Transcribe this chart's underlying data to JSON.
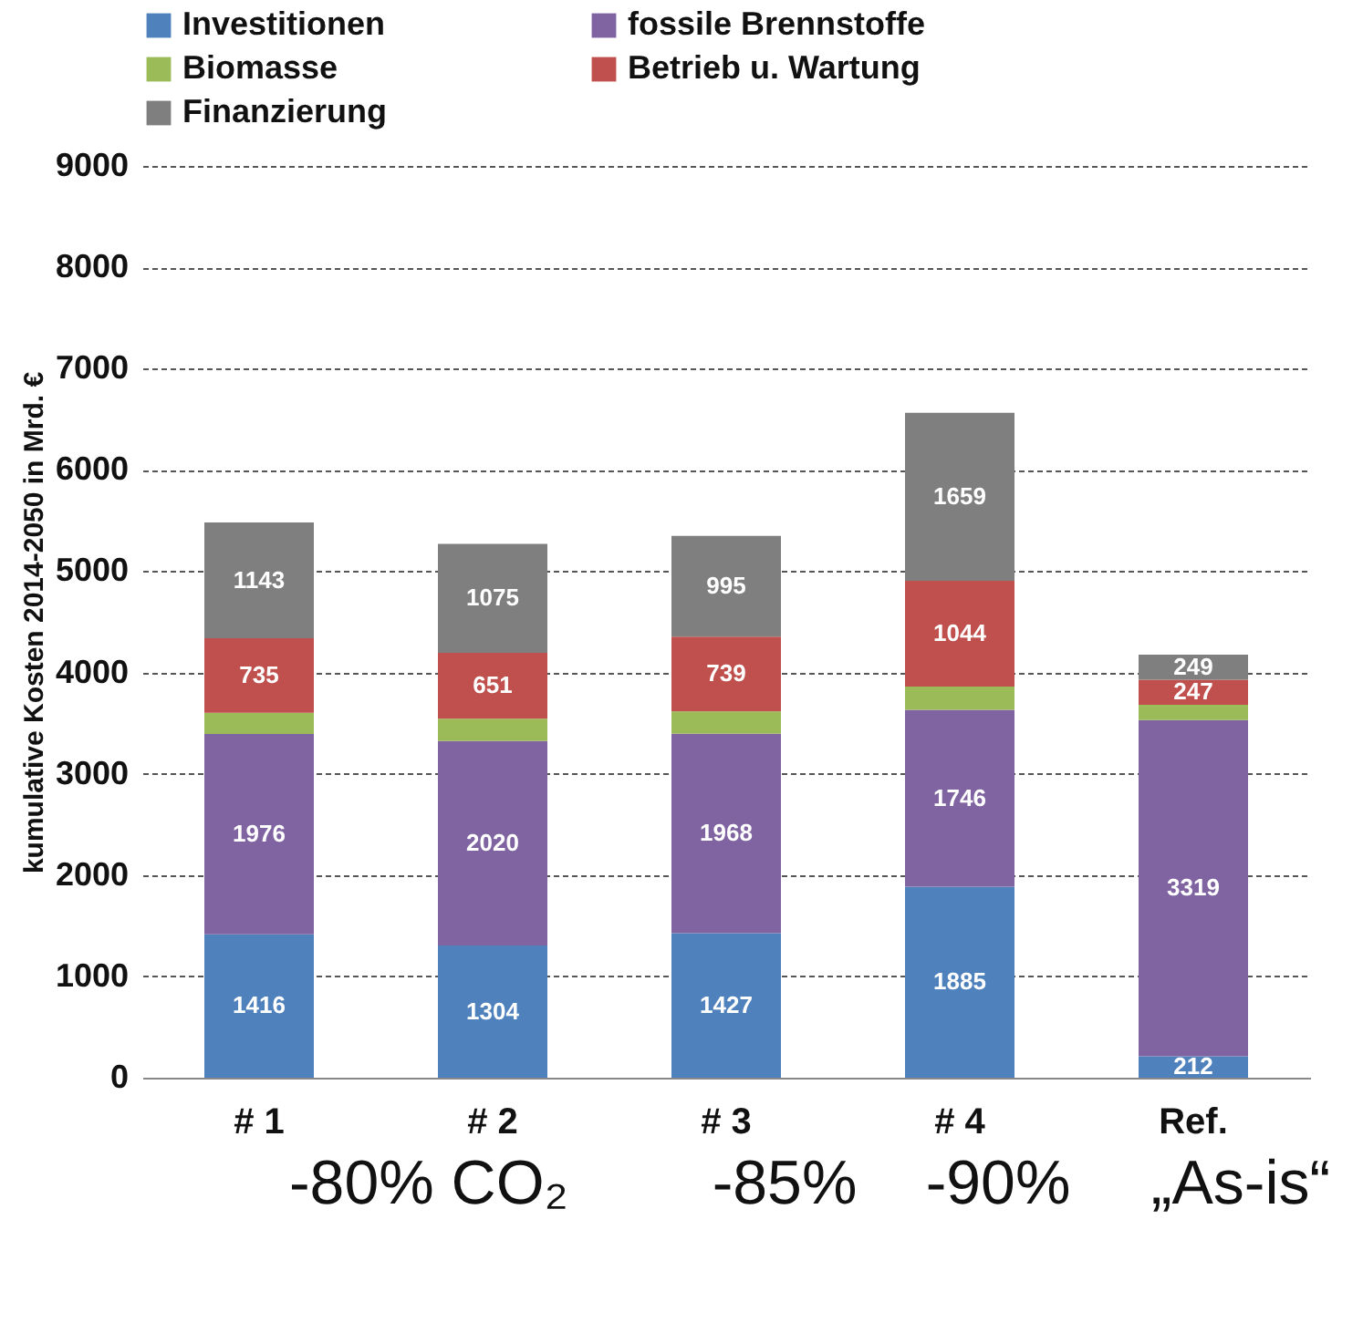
{
  "chart_data": {
    "type": "bar",
    "stacked": true,
    "ylabel": "kumulative Kosten 2014-2050 in Mrd. €",
    "categories": [
      "# 1",
      "# 2",
      "# 3",
      "# 4",
      "Ref."
    ],
    "series": [
      {
        "name": "Investitionen",
        "color": "#4f81bd",
        "values": [
          1416,
          1304,
          1427,
          1885,
          212
        ],
        "value_labels": [
          "1416",
          "1304",
          "1427",
          "1885",
          "212"
        ]
      },
      {
        "name": "fossile Brennstoffe",
        "color": "#8064a2",
        "values": [
          1976,
          2020,
          1968,
          1746,
          3319
        ],
        "value_labels": [
          "1976",
          "2020",
          "1968",
          "1746",
          "3319"
        ]
      },
      {
        "name": "Biomasse",
        "color": "#9bbb59",
        "values": [
          210,
          220,
          220,
          230,
          150
        ]
      },
      {
        "name": "Betrieb u. Wartung",
        "color": "#c0504d",
        "values": [
          735,
          651,
          739,
          1044,
          247
        ],
        "value_labels": [
          "735",
          "651",
          "739",
          "1044",
          "247"
        ]
      },
      {
        "name": "Finanzierung",
        "color": "#7f7f7f",
        "values": [
          1143,
          1075,
          995,
          1659,
          249
        ],
        "value_labels": [
          "1143",
          "1075",
          "995",
          "1659",
          "249"
        ]
      }
    ],
    "ylim": [
      0,
      9000
    ],
    "yticks": [
      0,
      1000,
      2000,
      3000,
      4000,
      5000,
      6000,
      7000,
      8000,
      9000
    ],
    "grid": "y",
    "legend": "top",
    "annotations": [
      "-80% CO₂",
      "-85%",
      "-90%",
      "„As-is“"
    ]
  }
}
